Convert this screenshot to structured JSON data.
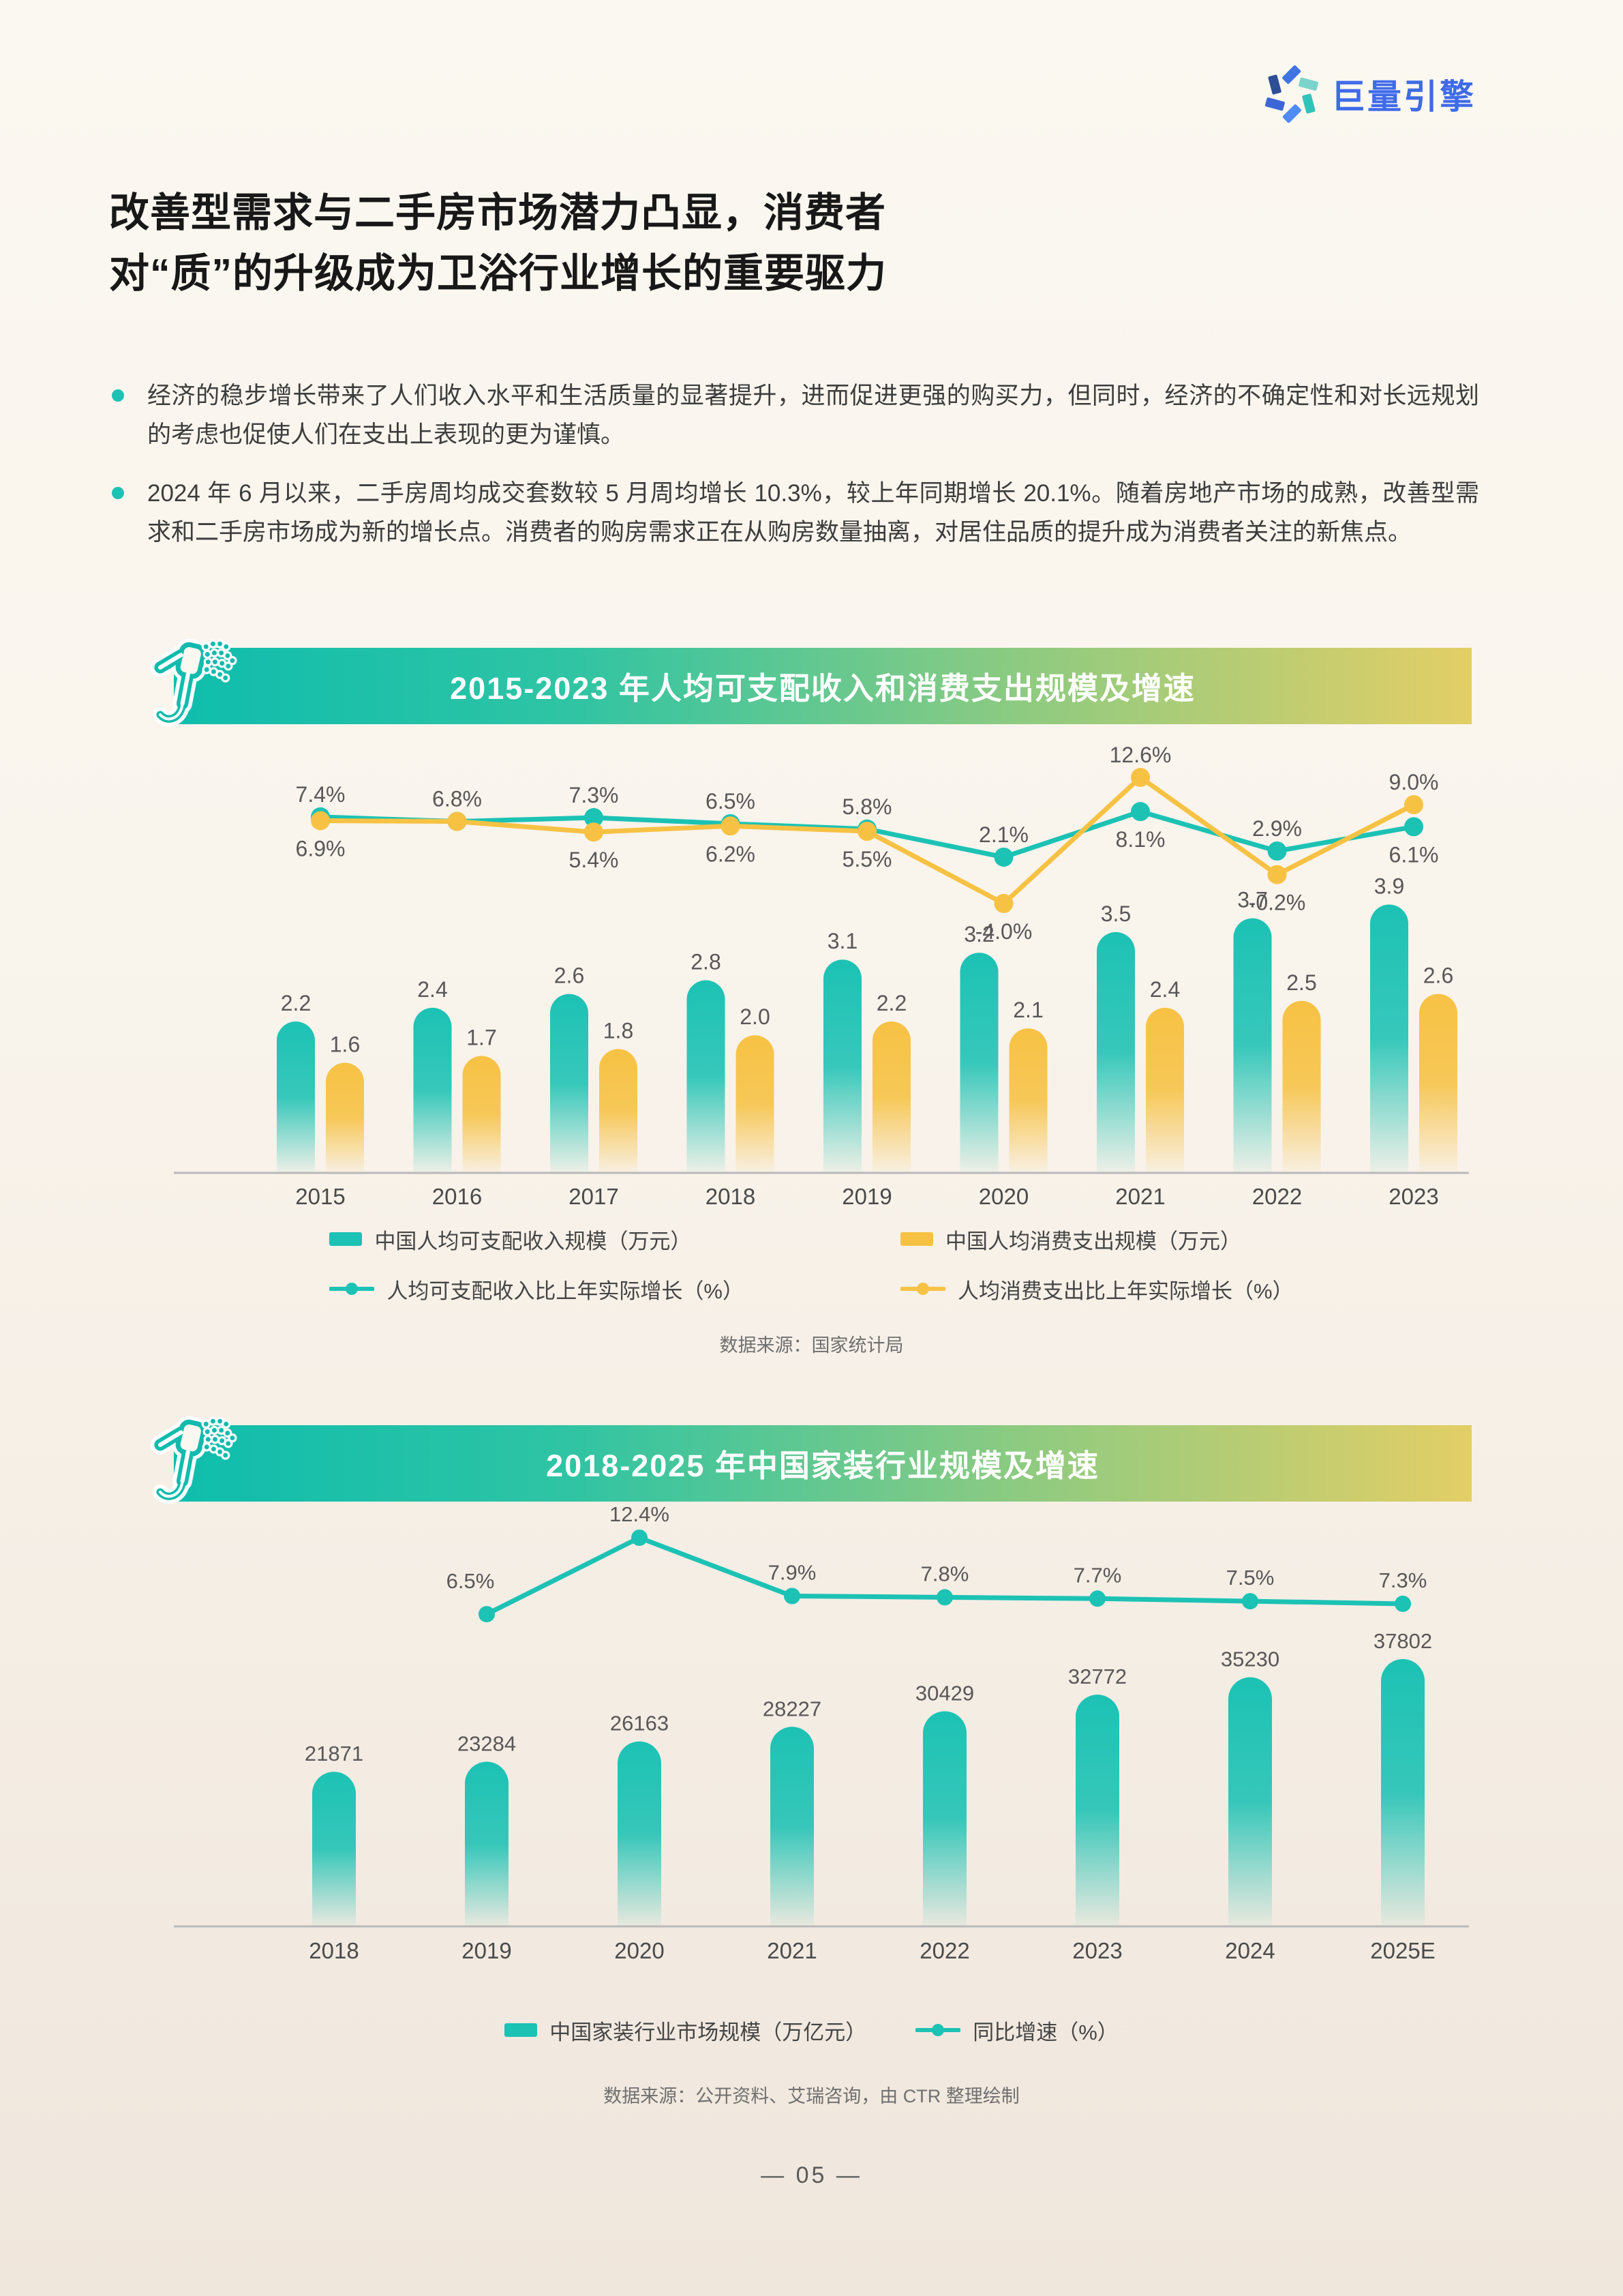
{
  "logo": {
    "text": "巨量引擎"
  },
  "title": {
    "line1": "改善型需求与二手房市场潜力凸显，消费者",
    "line2": "对“质”的升级成为卫浴行业增长的重要驱力"
  },
  "bullets": [
    "经济的稳步增长带来了人们收入水平和生活质量的显著提升，进而促进更强的购买力，但同时，经济的不确定性和对长远规划的考虑也促使人们在支出上表现的更为谨慎。",
    "2024 年 6 月以来，二手房周均成交套数较 5 月周均增长 10.3%，较上年同期增长 20.1%。随着房地产市场的成熟，改善型需求和二手房市场成为新的增长点。消费者的购房需求正在从购房数量抽离，对居住品质的提升成为消费者关注的新焦点。"
  ],
  "colors": {
    "teal": "#1CC2B4",
    "yellow": "#F7C244",
    "banner_start": "#0FBDAD",
    "banner_end": "#E3CE66",
    "label_gray": "#595757",
    "logo_blue": "#3F6BE9"
  },
  "chart_data": [
    {
      "type": "bar",
      "title": "2015-2023 年人均可支配收入和消费支出规模及增速",
      "categories": [
        "2015",
        "2016",
        "2017",
        "2018",
        "2019",
        "2020",
        "2021",
        "2022",
        "2023"
      ],
      "label_format": "fixed1",
      "bar_series": [
        {
          "name": "中国人均可支配收入规模（万元）",
          "color": "teal",
          "values": [
            2.2,
            2.4,
            2.6,
            2.8,
            3.1,
            3.2,
            3.5,
            3.7,
            3.9
          ]
        },
        {
          "name": "中国人均消费支出规模（万元）",
          "color": "yellow",
          "values": [
            1.6,
            1.7,
            1.8,
            2.0,
            2.2,
            2.1,
            2.4,
            2.5,
            2.6
          ]
        }
      ],
      "line_series": [
        {
          "name": "人均可支配收入比上年实际增长（%）",
          "color": "teal",
          "values": [
            7.4,
            6.8,
            7.3,
            6.5,
            5.8,
            2.1,
            8.1,
            2.9,
            6.1
          ],
          "labels": [
            "7.4%",
            null,
            "7.3%",
            "6.5%",
            "5.8%",
            "2.1%",
            "8.1%",
            "2.9%",
            "6.1%"
          ],
          "label_pos": [
            "above",
            null,
            "above",
            "above",
            "above",
            "above",
            "below",
            "above",
            "below"
          ]
        },
        {
          "name": "人均消费支出比上年实际增长（%）",
          "color": "yellow",
          "values": [
            6.9,
            6.8,
            5.4,
            6.2,
            5.5,
            -4.0,
            12.6,
            -0.2,
            9.0
          ],
          "labels": [
            "6.9%",
            "6.8%",
            "5.4%",
            "6.2%",
            "5.5%",
            "-4.0%",
            "12.6%",
            "-0.2%",
            "9.0%"
          ],
          "label_pos": [
            "below",
            "above",
            "below",
            "below",
            "below",
            "below",
            "above",
            "below",
            "above"
          ]
        }
      ],
      "ylim_line": [
        -4.0,
        12.6
      ],
      "ylim_bar": [
        0,
        3.9
      ],
      "legend_position": "bottom",
      "grid": false,
      "source": "数据来源：国家统计局"
    },
    {
      "type": "bar",
      "title": "2018-2025 年中国家装行业规模及增速",
      "categories": [
        "2018",
        "2019",
        "2020",
        "2021",
        "2022",
        "2023",
        "2024",
        "2025E"
      ],
      "label_format": "int",
      "bar_series": [
        {
          "name": "中国家装行业市场规模（万亿元）",
          "color": "teal",
          "values": [
            21871,
            23284,
            26163,
            28227,
            30429,
            32772,
            35230,
            37802
          ]
        }
      ],
      "line_series": [
        {
          "name": "同比增速（%）",
          "color": "teal",
          "values": [
            null,
            6.5,
            12.4,
            7.9,
            7.8,
            7.7,
            7.5,
            7.3
          ],
          "labels": [
            null,
            "6.5%",
            "12.4%",
            "7.9%",
            "7.8%",
            "7.7%",
            "7.5%",
            "7.3%"
          ],
          "label_pos": [
            null,
            "aboveleft",
            "above",
            "above",
            "above",
            "above",
            "above",
            "above"
          ]
        }
      ],
      "ylim_line": [
        6.5,
        12.4
      ],
      "ylim_bar": [
        0,
        37802
      ],
      "legend_position": "bottom",
      "grid": false,
      "source": "数据来源：公开资料、艾瑞咨询，由 CTR 整理绘制"
    }
  ],
  "footer": {
    "page": "— 05 —"
  }
}
